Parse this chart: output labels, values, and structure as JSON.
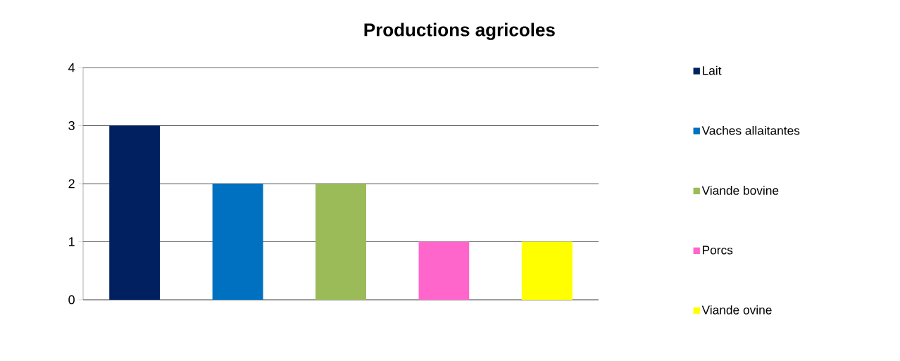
{
  "chart_data": {
    "type": "bar",
    "title": "Productions agricoles",
    "categories": [
      null
    ],
    "series": [
      {
        "name": "Lait",
        "color": "#002060",
        "values": [
          3
        ]
      },
      {
        "name": "Vaches allaitantes",
        "color": "#0070c0",
        "values": [
          2
        ]
      },
      {
        "name": "Viande bovine",
        "color": "#9bbb59",
        "values": [
          2
        ]
      },
      {
        "name": "Porcs",
        "color": "#ff66cc",
        "values": [
          1
        ]
      },
      {
        "name": "Viande ovine",
        "color": "#ffff00",
        "values": [
          1
        ]
      }
    ],
    "ylim": [
      0,
      4
    ],
    "yticks": [
      0,
      1,
      2,
      3,
      4
    ],
    "grid": "y",
    "legend": "right",
    "tick_labels": "y"
  }
}
